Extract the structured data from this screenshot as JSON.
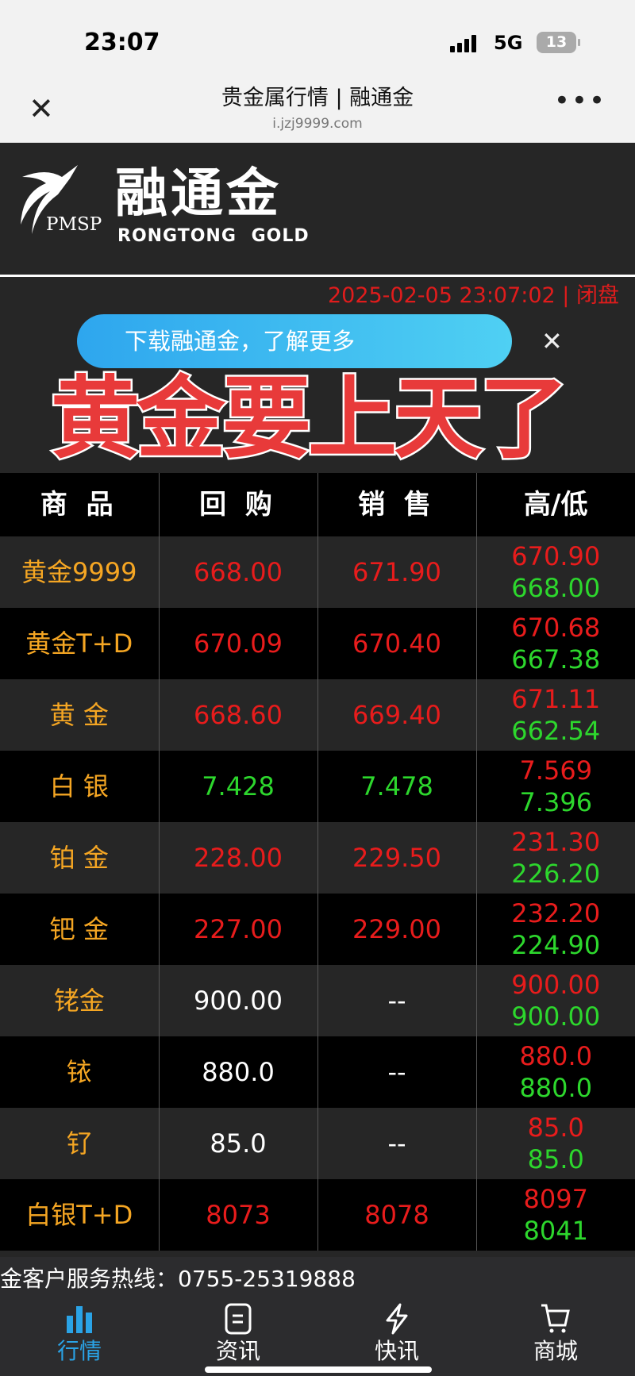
{
  "status_bar": {
    "time": "23:07",
    "network": "5G",
    "battery": "13"
  },
  "browser": {
    "title": "贵金属行情 | 融通金",
    "url": "i.jzj9999.com"
  },
  "logo": {
    "brand_cn": "融通金",
    "brand_en": "RONGTONG GOLD",
    "mark": "PMSP"
  },
  "timestamp": "2025-02-05 23:07:02 | 闭盘",
  "banner": {
    "text": "下载融通金，了解更多"
  },
  "overlay_caption": "黄金要上天了",
  "table": {
    "headers": [
      "商 品",
      "回 购",
      "销 售",
      "高/低"
    ],
    "rows": [
      {
        "name": "黄金9999",
        "buy": "668.00",
        "sell": "671.90",
        "high": "670.90",
        "low": "668.00",
        "buy_color": "red",
        "sell_color": "red"
      },
      {
        "name": "黄金T+D",
        "buy": "670.09",
        "sell": "670.40",
        "high": "670.68",
        "low": "667.38",
        "buy_color": "red",
        "sell_color": "red"
      },
      {
        "name": "黄 金",
        "buy": "668.60",
        "sell": "669.40",
        "high": "671.11",
        "low": "662.54",
        "buy_color": "red",
        "sell_color": "red"
      },
      {
        "name": "白 银",
        "buy": "7.428",
        "sell": "7.478",
        "high": "7.569",
        "low": "7.396",
        "buy_color": "green",
        "sell_color": "green"
      },
      {
        "name": "铂 金",
        "buy": "228.00",
        "sell": "229.50",
        "high": "231.30",
        "low": "226.20",
        "buy_color": "red",
        "sell_color": "red"
      },
      {
        "name": "钯 金",
        "buy": "227.00",
        "sell": "229.00",
        "high": "232.20",
        "low": "224.90",
        "buy_color": "red",
        "sell_color": "red"
      },
      {
        "name": "铑金",
        "buy": "900.00",
        "sell": "--",
        "high": "900.00",
        "low": "900.00",
        "buy_color": "white",
        "sell_color": "white"
      },
      {
        "name": "铱",
        "buy": "880.0",
        "sell": "--",
        "high": "880.0",
        "low": "880.0",
        "buy_color": "white",
        "sell_color": "white"
      },
      {
        "name": "钌",
        "buy": "85.0",
        "sell": "--",
        "high": "85.0",
        "low": "85.0",
        "buy_color": "white",
        "sell_color": "white"
      },
      {
        "name": "白银T+D",
        "buy": "8073",
        "sell": "8078",
        "high": "8097",
        "low": "8041",
        "buy_color": "red",
        "sell_color": "red"
      }
    ]
  },
  "hotline": "金客户服务热线：0755-25319888",
  "tabs": [
    {
      "label": "行情",
      "icon": "bar-chart-icon",
      "active": true
    },
    {
      "label": "资讯",
      "icon": "document-icon"
    },
    {
      "label": "快讯",
      "icon": "lightning-icon"
    },
    {
      "label": "商城",
      "icon": "cart-icon"
    }
  ],
  "colors": {
    "red": "#e81c1c",
    "green": "#2dd72d",
    "gold": "#f5a623",
    "accent": "#2aa3e6"
  }
}
